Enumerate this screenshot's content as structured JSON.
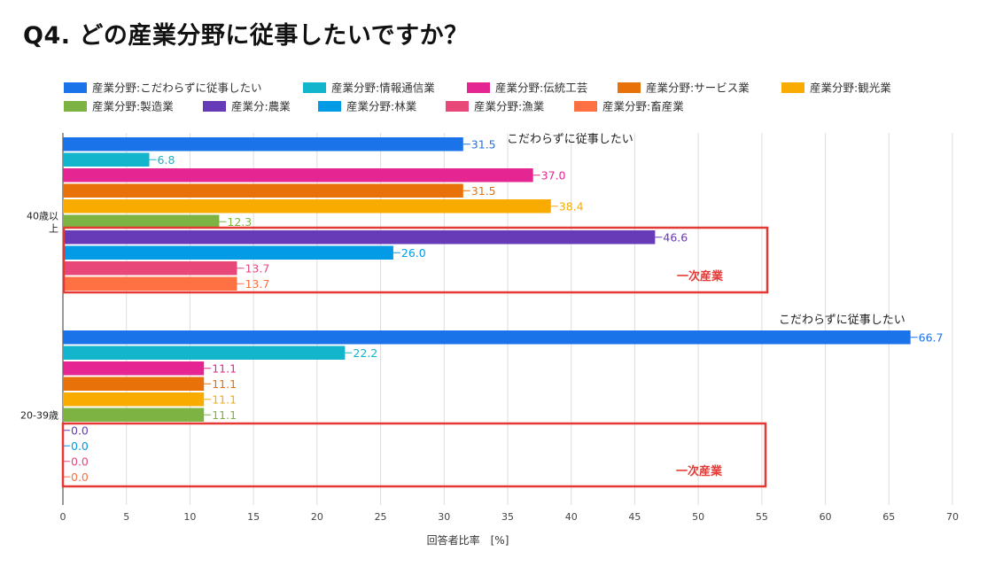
{
  "chart_data": {
    "type": "bar",
    "orientation": "horizontal",
    "title": "Q4. どの産業分野に従事したいですか？",
    "xlabel": "回答者比率　[%]",
    "ylabel": "",
    "xlim": [
      0,
      70
    ],
    "xticks": [
      0,
      5,
      10,
      15,
      20,
      25,
      30,
      35,
      40,
      45,
      50,
      55,
      60,
      65,
      70
    ],
    "grid": true,
    "legend_position": "top",
    "categories": [
      {
        "line1": "40歳以",
        "line2": "上"
      },
      {
        "line1": "20-39歳",
        "line2": ""
      }
    ],
    "series": [
      {
        "name": "産業分野:こだわらずに従事したい",
        "color": "#1a73e8",
        "values": [
          31.5,
          66.7
        ]
      },
      {
        "name": "産業分野:情報通信業",
        "color": "#12b5cb",
        "values": [
          6.8,
          22.2
        ]
      },
      {
        "name": "産業分野:伝統工芸",
        "color": "#e52592",
        "values": [
          37.0,
          11.1
        ]
      },
      {
        "name": "産業分野:サービス業",
        "color": "#e8710a",
        "values": [
          31.5,
          11.1
        ]
      },
      {
        "name": "産業分野:観光業",
        "color": "#f9ab00",
        "values": [
          38.4,
          11.1
        ]
      },
      {
        "name": "産業分野:製造業",
        "color": "#7cb342",
        "values": [
          12.3,
          11.1
        ]
      },
      {
        "name": "産業分:農業",
        "color": "#673ab7",
        "values": [
          46.6,
          0.0
        ]
      },
      {
        "name": "産業分野:林業",
        "color": "#039be5",
        "values": [
          26.0,
          0.0
        ]
      },
      {
        "name": "産業分野:漁業",
        "color": "#e8477a",
        "values": [
          13.7,
          0.0
        ]
      },
      {
        "name": "産業分野:畜産業",
        "color": "#ff7043",
        "values": [
          13.7,
          0.0
        ]
      }
    ],
    "annotations": [
      {
        "text": "こだわらずに従事したい",
        "group": 0
      },
      {
        "text": "こだわらずに従事したい",
        "group": 1
      }
    ],
    "highlight_boxes": [
      {
        "label": "一次産業",
        "group": 0,
        "color": "#e53935"
      },
      {
        "label": "一次産業",
        "group": 1,
        "color": "#e53935"
      }
    ]
  }
}
